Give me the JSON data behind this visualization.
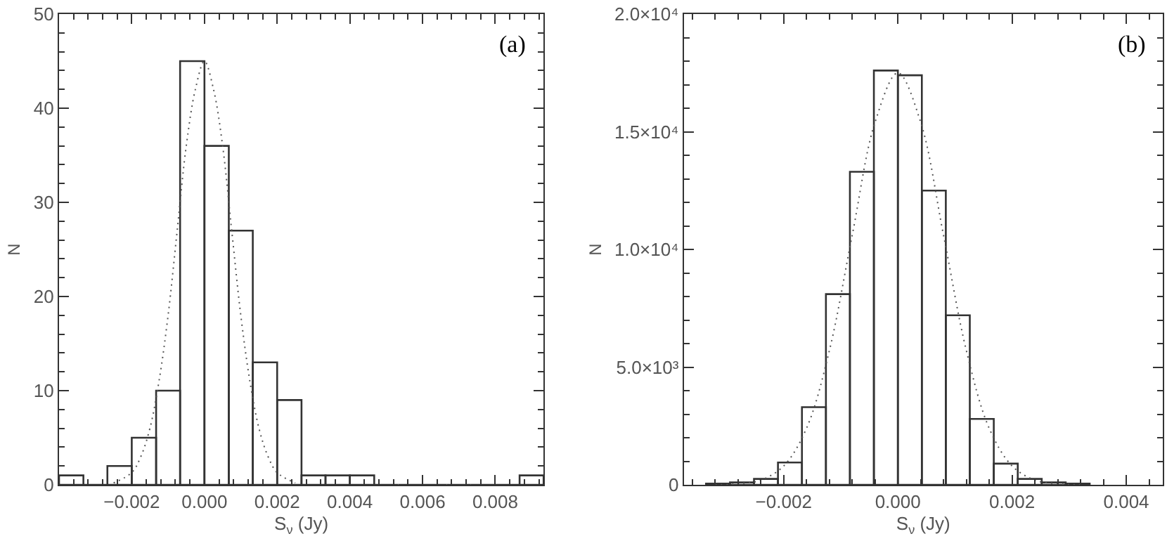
{
  "chart_data": [
    {
      "type": "histogram",
      "xlabel": "S$_{ν}$ (Jy)",
      "ylabel": "N",
      "annotations": [
        "(a)"
      ],
      "bins": [
        -0.004,
        -0.00333,
        -0.00267,
        -0.002,
        -0.00133,
        -0.00067,
        0,
        0.00067,
        0.00133,
        0.002,
        0.00267,
        0.00333,
        0.004,
        0.00467,
        0.00533,
        0.006,
        0.00667,
        0.00733,
        0.008,
        0.00867,
        0.00933
      ],
      "values": [
        1,
        0,
        2,
        5,
        10,
        45,
        36,
        27,
        13,
        9,
        1,
        1,
        1,
        0,
        0,
        0,
        0,
        0,
        0,
        1
      ],
      "color": "#333333",
      "series": [
        {
          "type": "line",
          "line_style": "dotted",
          "color": "#555555",
          "x": [
            -0.0025,
            -0.002,
            -0.00175,
            -0.0015,
            -0.00125,
            -0.001,
            -0.00075,
            -0.0005,
            -0.00025,
            0,
            0.00025,
            0.0005,
            0.00075,
            0.001,
            0.00125,
            0.0015,
            0.00175,
            0.002,
            0.0025
          ],
          "values": [
            0.2,
            1.3,
            3,
            6,
            11,
            18,
            27,
            36,
            42,
            45,
            42,
            36,
            27,
            18,
            11,
            6,
            3,
            1.3,
            0.2
          ]
        }
      ],
      "xlim": [
        -0.004,
        0.00933
      ],
      "xticks": [
        -0.002,
        {
          "value": 0,
          "label": "0.000"
        },
        0.002,
        0.004,
        0.006,
        0.008
      ],
      "ylim": [
        0,
        50
      ],
      "yticks": [
        0,
        10,
        20,
        30,
        40,
        50
      ]
    },
    {
      "type": "histogram",
      "xlabel": "S$_{ν}$ (Jy)",
      "ylabel": "N",
      "annotations": [
        "(b)"
      ],
      "bins": [
        -0.00336,
        -0.00294,
        -0.00252,
        -0.0021,
        -0.00168,
        -0.00126,
        -0.00084,
        -0.00042,
        0,
        0.00042,
        0.00084,
        0.00126,
        0.00168,
        0.0021,
        0.00252,
        0.00294,
        0.00336
      ],
      "values": [
        50,
        100,
        250,
        950,
        3300,
        8100,
        13300,
        17600,
        17400,
        12500,
        7200,
        2800,
        900,
        250,
        100,
        50
      ],
      "color": "#333333",
      "series": [
        {
          "type": "line",
          "line_style": "dotted",
          "color": "#555555",
          "x": [
            -0.0032,
            -0.0028,
            -0.0024,
            -0.002,
            -0.0016,
            -0.0012,
            -0.0008,
            -0.0004,
            0,
            0.0004,
            0.0008,
            0.0012,
            0.0016,
            0.002,
            0.0024,
            0.0028,
            0.0032
          ],
          "values": [
            0,
            40,
            200,
            800,
            2400,
            5700,
            10600,
            15400,
            17500,
            15400,
            10600,
            5700,
            2400,
            800,
            200,
            40,
            0
          ]
        }
      ],
      "xlim": [
        -0.00375,
        0.00464
      ],
      "xticks": [
        -0.002,
        {
          "value": 0,
          "label": "0.000"
        },
        0.002,
        0.004
      ],
      "ylim": [
        0,
        20000
      ],
      "yticks": [
        0,
        {
          "value": 5000,
          "label": "5.0×10³"
        },
        {
          "value": 10000,
          "label": "1.0×10⁴"
        },
        {
          "value": 15000,
          "label": "1.5×10⁴"
        },
        {
          "value": 20000,
          "label": "2.0×10⁴"
        }
      ]
    }
  ]
}
